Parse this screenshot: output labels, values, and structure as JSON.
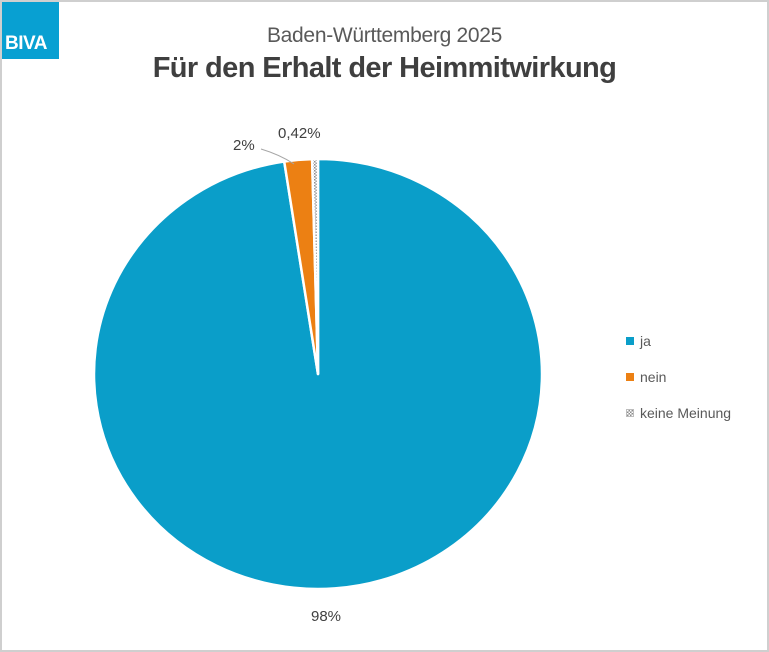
{
  "logo": {
    "text": "BIVA",
    "background_color": "#08a0d2",
    "text_color": "#ffffff"
  },
  "chart_data": {
    "type": "pie",
    "subtitle": "Baden-Württemberg 2025",
    "title": "Für den Erhalt der Heimmitwirkung",
    "legend_position": "right",
    "direction": "clockwise",
    "start_angle_deg": 0,
    "slices": [
      {
        "label": "ja",
        "value": 98,
        "display": "98%",
        "color": "#0a9ec9",
        "pattern": "solid"
      },
      {
        "label": "nein",
        "value": 2,
        "display": "2%",
        "color": "#ec8013",
        "pattern": "solid"
      },
      {
        "label": "keine Meinung",
        "value": 0.42,
        "display": "0,42%",
        "color": "#8c8c8c",
        "pattern": "checker"
      }
    ]
  },
  "colors": {
    "frame_border": "#cfcfcf",
    "title_text": "#3f3f3f",
    "subtitle_text": "#595959",
    "data_label_text": "#404040",
    "legend_text": "#595959",
    "leader_line": "#a6a6a6",
    "slice_border": "#ffffff"
  }
}
